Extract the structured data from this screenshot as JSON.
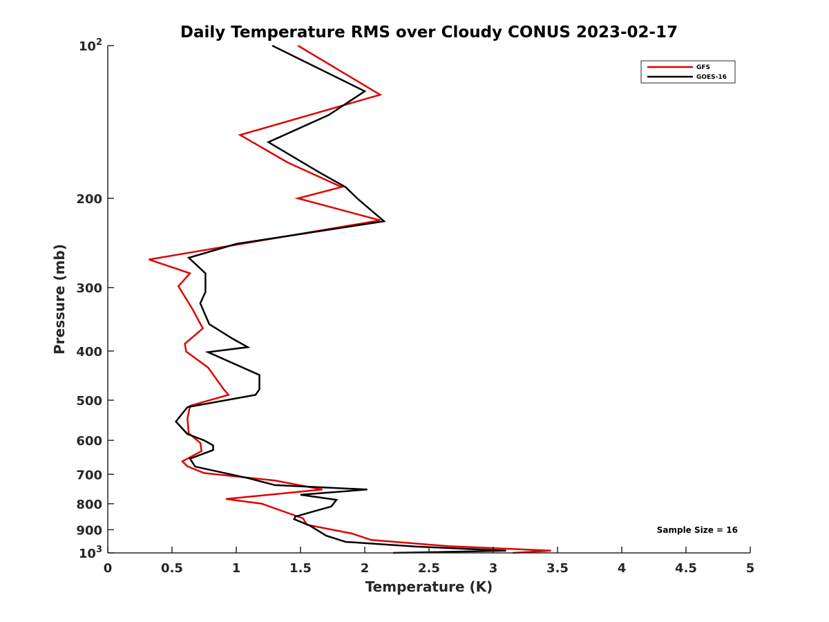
{
  "chart_data": {
    "type": "line",
    "title": "Daily Temperature RMS over Cloudy CONUS 2023-02-17",
    "xlabel": "Temperature (K)",
    "ylabel": "Pressure (mb)",
    "xlim": [
      0,
      5
    ],
    "ylim": [
      100,
      1000
    ],
    "y_scale": "log",
    "y_reversed": true,
    "grid": false,
    "legend_position": "top-right",
    "annotation": "Sample Size = 16",
    "x_ticks": [
      "0",
      "0.5",
      "1",
      "1.5",
      "2",
      "2.5",
      "3",
      "3.5",
      "4",
      "4.5",
      "5"
    ],
    "y_ticks": [
      {
        "value": 100,
        "base": "10",
        "exp": "2"
      },
      {
        "value": 200,
        "label": "200"
      },
      {
        "value": 300,
        "label": "300"
      },
      {
        "value": 400,
        "label": "400"
      },
      {
        "value": 500,
        "label": "500"
      },
      {
        "value": 600,
        "label": "600"
      },
      {
        "value": 700,
        "label": "700"
      },
      {
        "value": 800,
        "label": "800"
      },
      {
        "value": 900,
        "label": "900"
      },
      {
        "value": 1000,
        "base": "10",
        "exp": "3"
      }
    ],
    "series": [
      {
        "name": "GFS",
        "color": "#e00000",
        "points": [
          [
            1.48,
            100
          ],
          [
            2.12,
            125
          ],
          [
            1.03,
            150
          ],
          [
            1.4,
            170
          ],
          [
            1.82,
            190
          ],
          [
            1.48,
            200
          ],
          [
            2.12,
            221
          ],
          [
            1.04,
            246
          ],
          [
            0.32,
            264
          ],
          [
            0.64,
            281
          ],
          [
            0.55,
            298
          ],
          [
            0.66,
            331
          ],
          [
            0.74,
            361
          ],
          [
            0.6,
            387
          ],
          [
            0.61,
            401
          ],
          [
            0.78,
            431
          ],
          [
            0.9,
            475
          ],
          [
            0.94,
            488
          ],
          [
            0.64,
            513
          ],
          [
            0.62,
            544
          ],
          [
            0.63,
            581
          ],
          [
            0.72,
            607
          ],
          [
            0.73,
            630
          ],
          [
            0.58,
            660
          ],
          [
            0.62,
            675
          ],
          [
            0.75,
            696
          ],
          [
            1.3,
            720
          ],
          [
            1.67,
            750
          ],
          [
            0.92,
            783
          ],
          [
            1.2,
            800
          ],
          [
            1.52,
            855
          ],
          [
            1.55,
            880
          ],
          [
            1.9,
            916
          ],
          [
            2.05,
            943
          ],
          [
            2.65,
            970
          ],
          [
            3.45,
            990
          ],
          [
            3.15,
            1000
          ]
        ]
      },
      {
        "name": "GOES-16",
        "color": "#000000",
        "points": [
          [
            1.28,
            100
          ],
          [
            2.0,
            123
          ],
          [
            1.72,
            137
          ],
          [
            1.25,
            155
          ],
          [
            1.65,
            178
          ],
          [
            1.85,
            190
          ],
          [
            1.95,
            201
          ],
          [
            2.15,
            222
          ],
          [
            1.0,
            246
          ],
          [
            0.63,
            262
          ],
          [
            0.76,
            281
          ],
          [
            0.76,
            306
          ],
          [
            0.72,
            322
          ],
          [
            0.79,
            354
          ],
          [
            0.97,
            378
          ],
          [
            1.09,
            393
          ],
          [
            0.78,
            402
          ],
          [
            1.18,
            446
          ],
          [
            1.18,
            476
          ],
          [
            1.15,
            488
          ],
          [
            0.62,
            516
          ],
          [
            0.53,
            551
          ],
          [
            0.62,
            583
          ],
          [
            0.75,
            600
          ],
          [
            0.82,
            614
          ],
          [
            0.82,
            627
          ],
          [
            0.64,
            652
          ],
          [
            0.68,
            676
          ],
          [
            1.1,
            713
          ],
          [
            1.3,
            735
          ],
          [
            2.02,
            750
          ],
          [
            1.5,
            768
          ],
          [
            1.78,
            786
          ],
          [
            1.74,
            810
          ],
          [
            1.46,
            848
          ],
          [
            1.45,
            858
          ],
          [
            1.57,
            883
          ],
          [
            1.7,
            925
          ],
          [
            1.85,
            951
          ],
          [
            2.4,
            972
          ],
          [
            3.1,
            990
          ],
          [
            2.22,
            1000
          ]
        ]
      }
    ]
  }
}
